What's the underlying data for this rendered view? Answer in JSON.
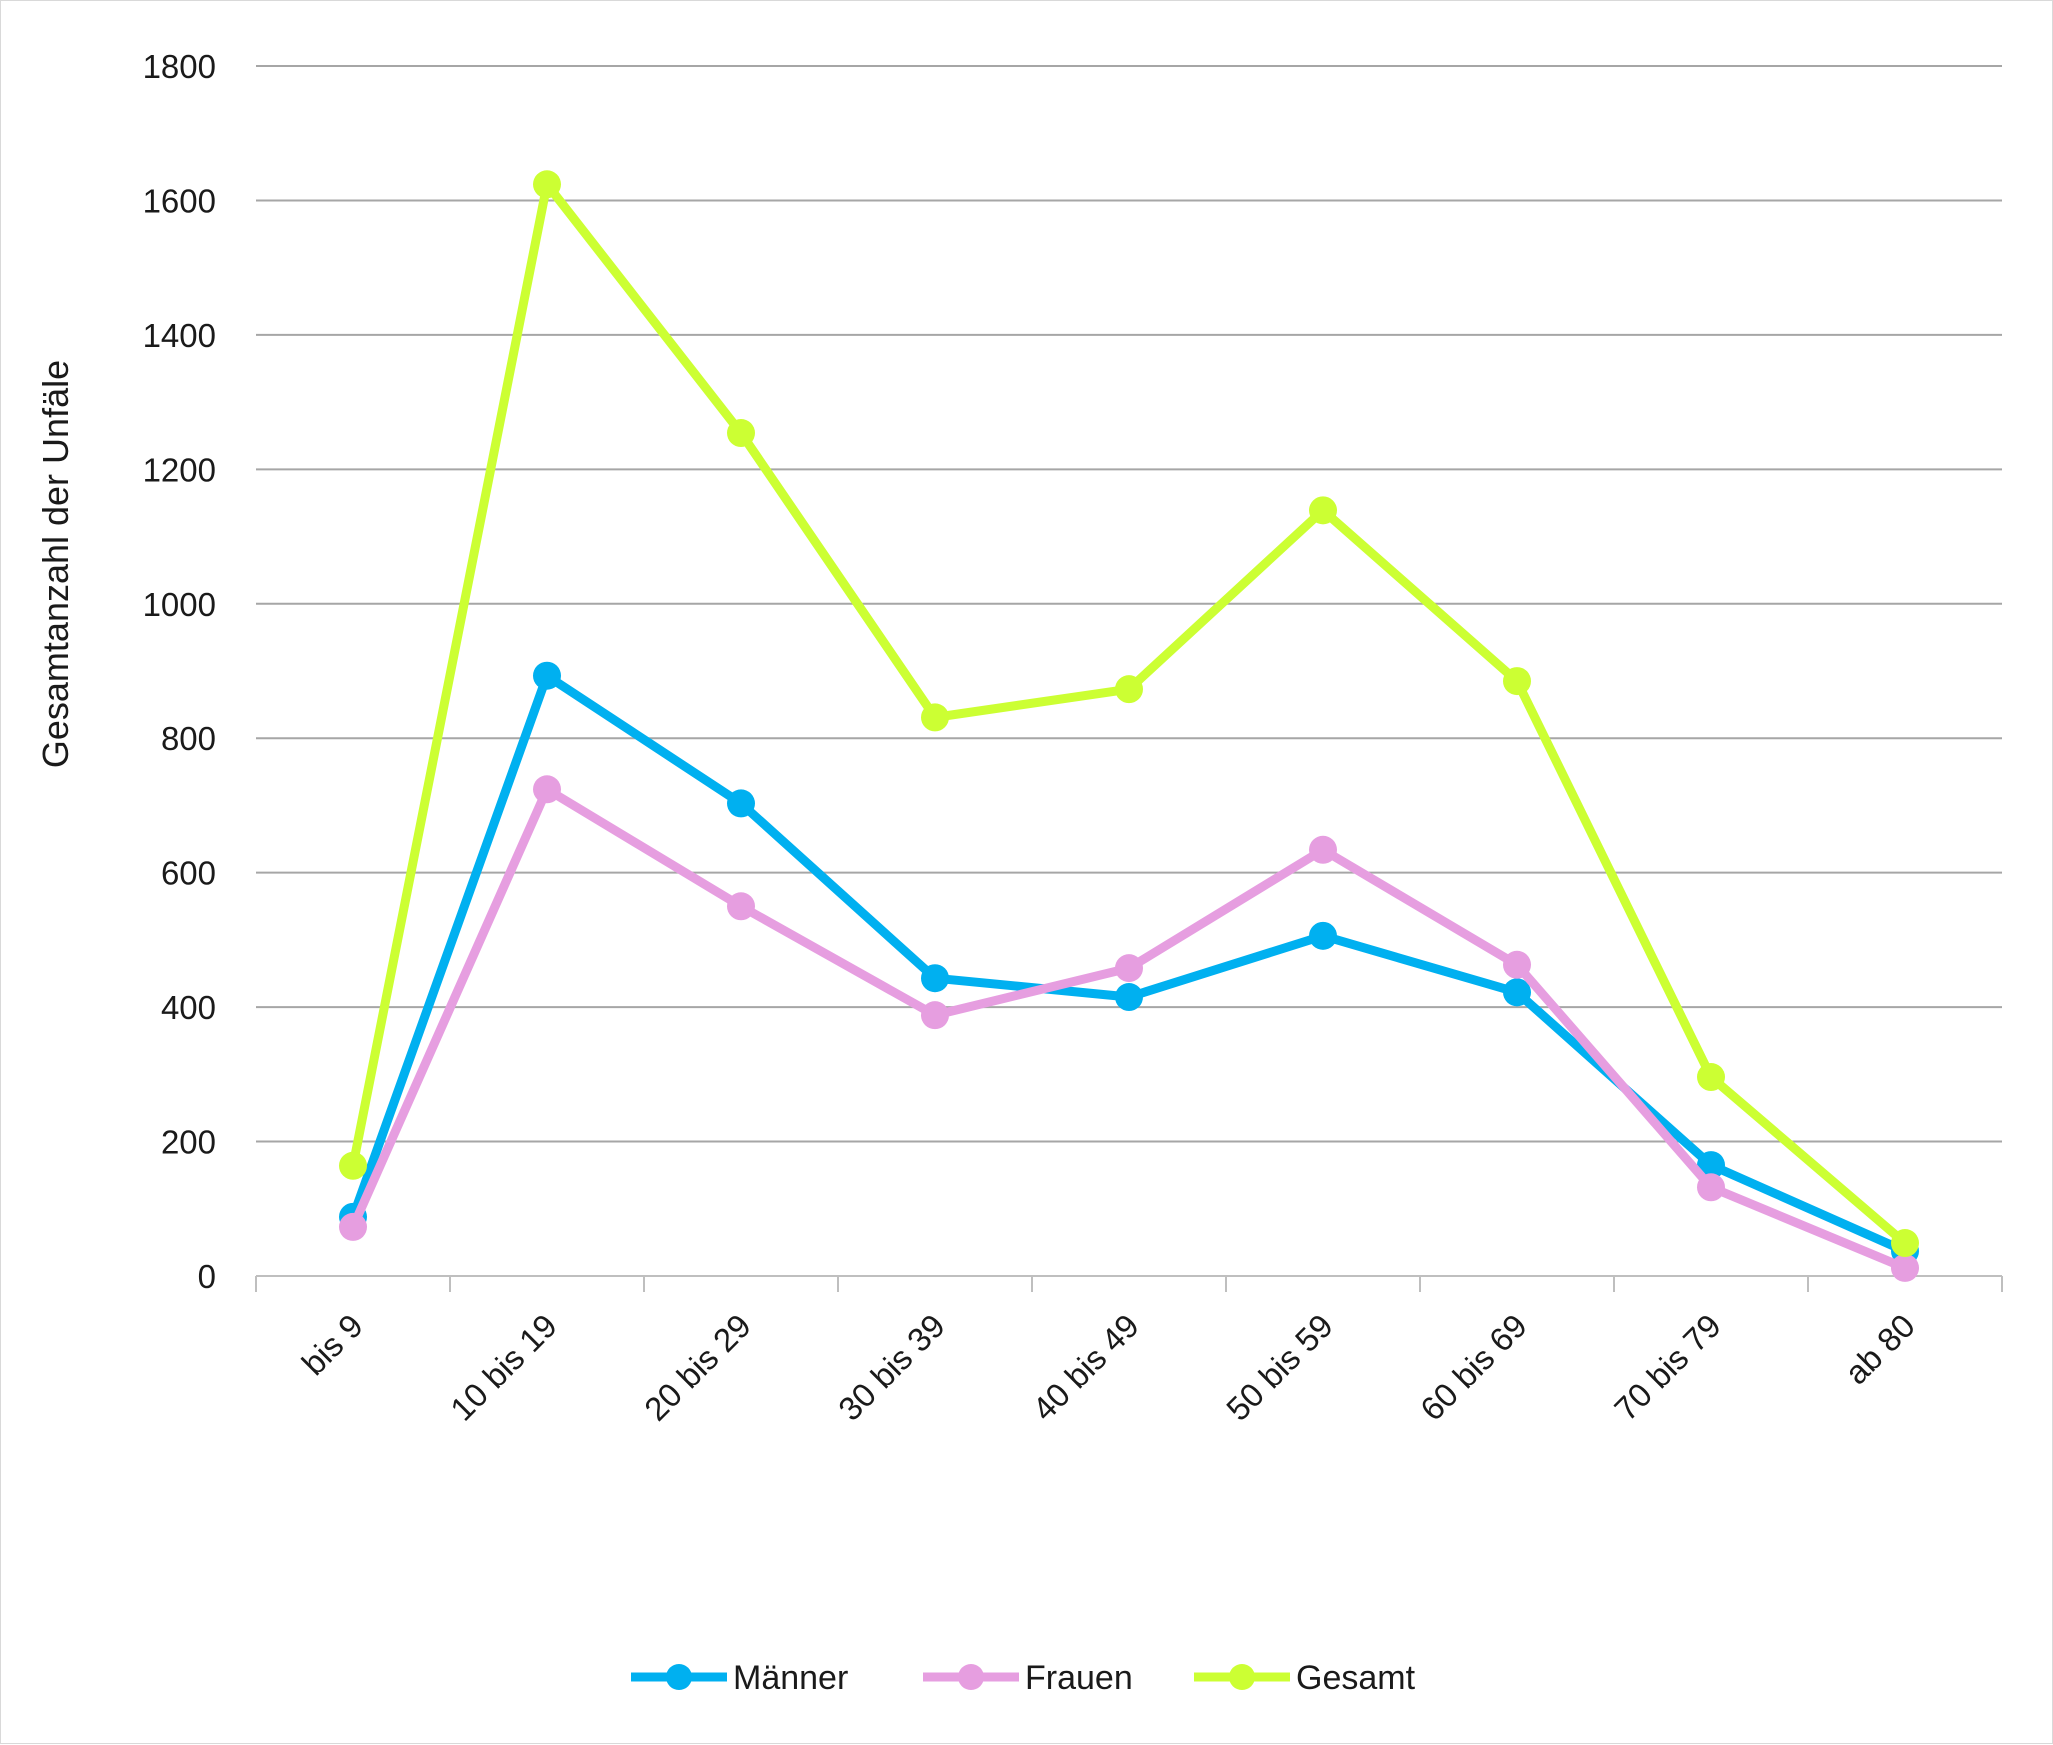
{
  "chart_data": {
    "type": "line",
    "ylabel": "Gesamtanzahl der Unfäle",
    "xlabel": "",
    "categories": [
      "bis 9",
      "10 bis 19",
      "20 bis 29",
      "30 bis 39",
      "40 bis 49",
      "50 bis 59",
      "60 bis 69",
      "70 bis 79",
      "ab 80"
    ],
    "ylim": [
      0,
      1800
    ],
    "yticks": [
      "0",
      "200",
      "400",
      "600",
      "800",
      "1000",
      "1200",
      "1400",
      "1600",
      "1800"
    ],
    "grid": true,
    "legend_position": "bottom",
    "series": [
      {
        "name": "Männer",
        "color": "#00b0f0",
        "values": [
          88,
          893,
          703,
          443,
          415,
          506,
          422,
          165,
          37
        ]
      },
      {
        "name": "Frauen",
        "color": "#e69ee0",
        "values": [
          73,
          724,
          550,
          388,
          458,
          634,
          463,
          132,
          12
        ]
      },
      {
        "name": "Gesamt",
        "color": "#ccff33",
        "values": [
          164,
          1624,
          1254,
          831,
          873,
          1139,
          885,
          296,
          49
        ]
      }
    ]
  }
}
